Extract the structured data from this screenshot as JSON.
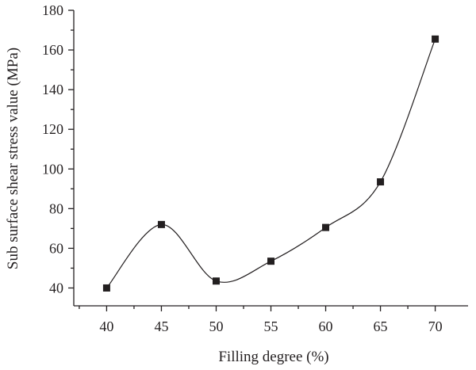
{
  "chart_data": {
    "type": "line",
    "xlabel": "Filling degree (%)",
    "ylabel": "Sub surface shear stress value (MPa)",
    "xlim": [
      37,
      73
    ],
    "ylim": [
      31,
      180
    ],
    "x_ticks": [
      40,
      45,
      50,
      55,
      60,
      65,
      70
    ],
    "y_ticks": [
      40,
      60,
      80,
      100,
      120,
      140,
      160,
      180
    ],
    "grid": false,
    "legend": "none",
    "smooth_line": true,
    "marker": "square",
    "color": "#231f20",
    "series": [
      {
        "x": [
          40,
          45,
          50,
          55,
          60,
          65,
          70
        ],
        "y": [
          40,
          72,
          43.5,
          53.5,
          70.5,
          93.5,
          165.5
        ]
      }
    ]
  }
}
